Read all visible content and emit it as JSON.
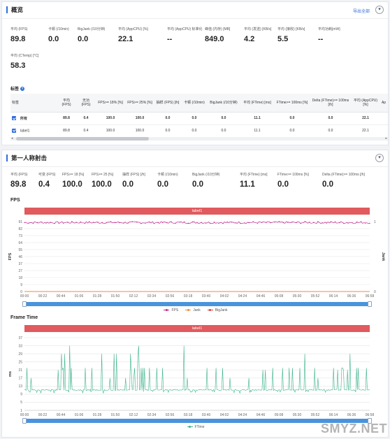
{
  "overview": {
    "title": "概览",
    "export_label": "导出全部",
    "collapse_glyph": "▾",
    "metrics": [
      {
        "label": "平均 (FPS)",
        "value": "89.8"
      },
      {
        "label": "卡顿 (/10min)",
        "value": "0.0"
      },
      {
        "label": "BigJank (/10分钟)",
        "value": "0.0"
      },
      {
        "label": "平均 (AppCPU) [%]",
        "value": "22.1"
      },
      {
        "label": "平均 (AppCPU) 标准化",
        "value": "--"
      },
      {
        "label": "峰值 (内存) [MB]",
        "value": "849.0"
      },
      {
        "label": "平均 (发送) [KB/s]",
        "value": "4.2"
      },
      {
        "label": "平均 (接收) [KB/s]",
        "value": "5.5"
      },
      {
        "label": "平均功耗[mW]",
        "value": "--"
      },
      {
        "label": "平均 (CTemp) [°C]",
        "value": "58.3"
      }
    ]
  },
  "tags": {
    "title": "标签",
    "help_glyph": "?",
    "columns": [
      "标签",
      "平均 (FPS)",
      "无功 (FPS)",
      "FPS>= 18% [%]",
      "FPS>= 25% [%]",
      "抽样 (FPS) [/h]",
      "卡顿 (/10min)",
      "BigJank (/10分钟)",
      "平均 (FTime) [ms]",
      "FTime>= 100ms [%]",
      "Delta (FTime)>= 100ms [/h]",
      "平均 (AppCPU) [%]",
      "Ap"
    ],
    "rows": [
      {
        "name": "所有",
        "cells": [
          "89.8",
          "0.4",
          "100.0",
          "100.0",
          "0.0",
          "0.0",
          "0.0",
          "11.1",
          "0.0",
          "0.0",
          "22.1",
          ""
        ]
      },
      {
        "name": "label1",
        "cells": [
          "89.8",
          "0.4",
          "100.0",
          "100.0",
          "0.0",
          "0.0",
          "0.0",
          "11.1",
          "0.0",
          "0.0",
          "22.1",
          ""
        ]
      }
    ],
    "scroll_left": "◂",
    "scroll_right": "▸"
  },
  "fps_section": {
    "title": "第一人称射击",
    "collapse_glyph": "▾",
    "metrics": [
      {
        "label": "平均 (FPS)",
        "value": "89.8"
      },
      {
        "label": "可变 (FPS)",
        "value": "0.4"
      },
      {
        "label": "FPS>= 18 [%]",
        "value": "100.0"
      },
      {
        "label": "FPS>= 25 [%]",
        "value": "100.0"
      },
      {
        "label": "抽样 (FPS) [/h]",
        "value": "0.0"
      },
      {
        "label": "卡顿 (/10min)",
        "value": "0.0"
      },
      {
        "label": "BigJank (/10分钟)",
        "value": "0.0"
      },
      {
        "label": "平均 (FTime) [ms]",
        "value": "11.1"
      },
      {
        "label": "FTime>= 100ms [%]",
        "value": "0.0"
      },
      {
        "label": "Delta (FTime)>= 100ms [/h]",
        "value": "0.0"
      }
    ]
  },
  "watermark": "SMYZ.NET",
  "chart_data": [
    {
      "type": "line",
      "title": "FPS",
      "banner": "label1",
      "ylabel": "FPS",
      "y2label": "Jank",
      "yticks": [
        "91",
        "82",
        "73",
        "64",
        "55",
        "46",
        "37",
        "27",
        "18",
        "9",
        "0"
      ],
      "y2ticks": [
        "1",
        "0"
      ],
      "ylim": [
        0,
        91
      ],
      "xticks": [
        "00:00",
        "00:22",
        "00:44",
        "01:06",
        "01:28",
        "01:50",
        "02:12",
        "02:34",
        "02:56",
        "03:18",
        "03:40",
        "04:02",
        "04:24",
        "04:46",
        "05:08",
        "05:30",
        "05:52",
        "06:14",
        "06:36",
        "06:58"
      ],
      "series": [
        {
          "name": "FPS",
          "color": "#c2278f",
          "mean": 89.8,
          "range": [
            88.5,
            91
          ]
        },
        {
          "name": "Jank",
          "color": "#f08a3c",
          "value": 0
        },
        {
          "name": "BigJank",
          "color": "#d94040",
          "value": 0
        }
      ]
    },
    {
      "type": "line",
      "title": "Frame Time",
      "banner": "label1",
      "ylabel": "ms",
      "yticks": [
        "37",
        "33",
        "29",
        "25",
        "21",
        "17",
        "13",
        "9",
        "5",
        "1"
      ],
      "ylim": [
        1,
        37
      ],
      "xticks": [
        "00:00",
        "00:22",
        "00:44",
        "01:06",
        "01:28",
        "01:50",
        "02:12",
        "02:34",
        "02:56",
        "03:18",
        "03:40",
        "04:02",
        "04:24",
        "04:46",
        "05:08",
        "05:30",
        "05:52",
        "06:14",
        "06:36",
        "06:58"
      ],
      "series": [
        {
          "name": "FTime",
          "color": "#3fb38e",
          "baseline": 11.1,
          "spike_values": [
            17,
            21,
            22,
            29,
            33
          ]
        }
      ]
    }
  ]
}
